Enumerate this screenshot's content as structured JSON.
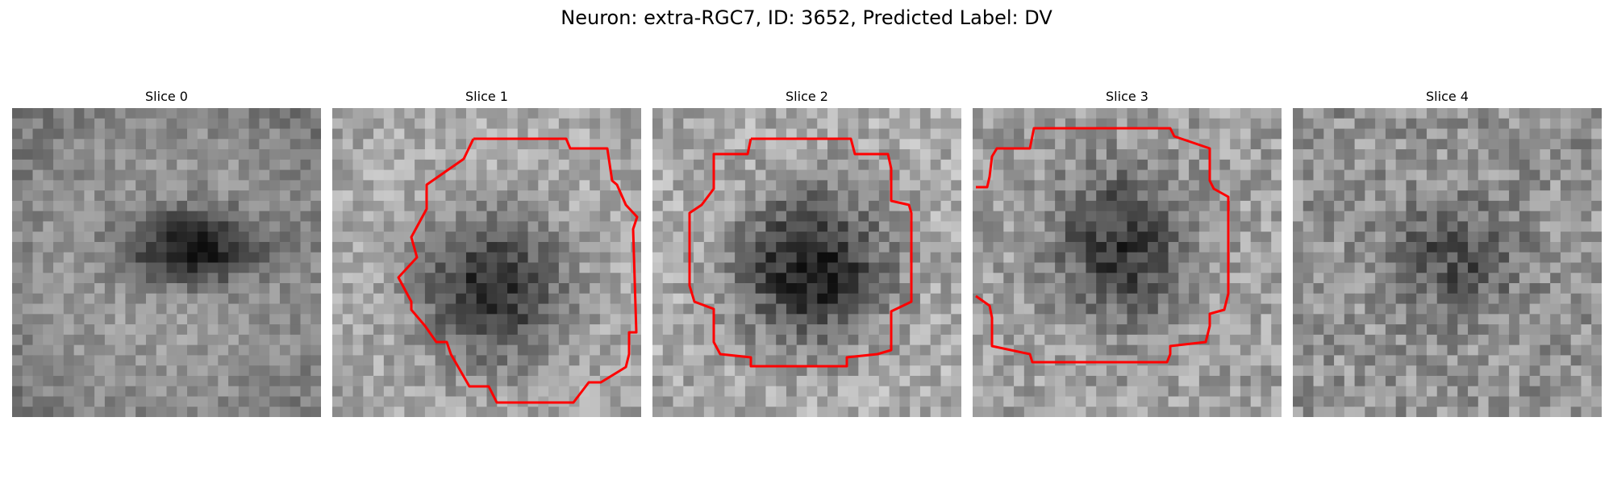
{
  "figure": {
    "title": "Neuron: extra-RGC7, ID: 3652, Predicted Label: DV"
  },
  "colors": {
    "contour": "#ff0000",
    "background": "#ffffff",
    "image_colormap": "grayscale"
  },
  "panels": [
    {
      "title": "Slice 0",
      "has_contour": false
    },
    {
      "title": "Slice 1",
      "has_contour": true
    },
    {
      "title": "Slice 2",
      "has_contour": true
    },
    {
      "title": "Slice 3",
      "has_contour": true
    },
    {
      "title": "Slice 4",
      "has_contour": false
    }
  ]
}
